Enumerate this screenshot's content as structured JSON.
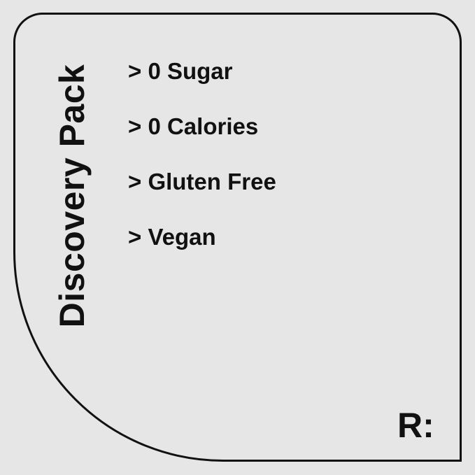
{
  "title": "Discovery Pack",
  "features": [
    "> 0 Sugar",
    "> 0 Calories",
    "> Gluten Free",
    "> Vegan"
  ],
  "logo": "R:",
  "colors": {
    "background": "#e6e6e6",
    "ink": "#111111"
  }
}
